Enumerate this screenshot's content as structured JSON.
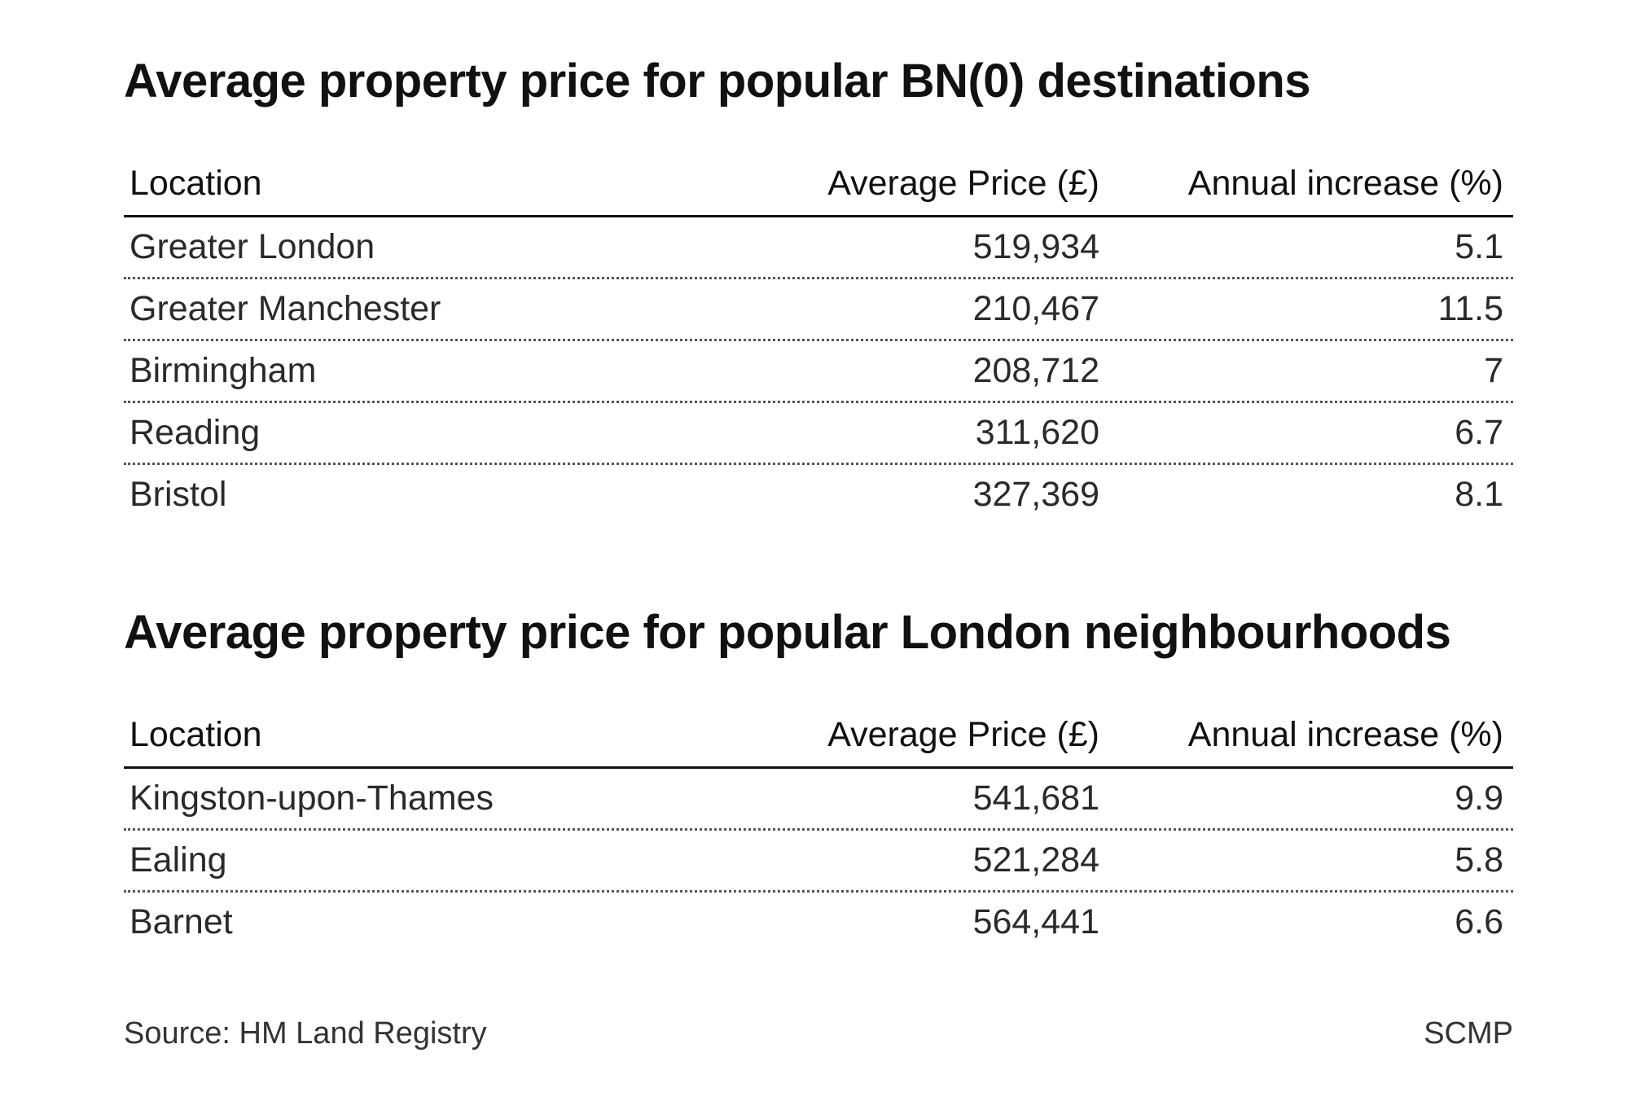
{
  "tables": [
    {
      "title": "Average property price for popular BN(0) destinations",
      "headers": {
        "location": "Location",
        "price": "Average Price (£)",
        "increase": "Annual increase (%)"
      },
      "rows": [
        {
          "location": "Greater London",
          "price": "519,934",
          "increase": "5.1"
        },
        {
          "location": "Greater Manchester",
          "price": "210,467",
          "increase": "11.5"
        },
        {
          "location": "Birmingham",
          "price": "208,712",
          "increase": "7"
        },
        {
          "location": "Reading",
          "price": "311,620",
          "increase": "6.7"
        },
        {
          "location": "Bristol",
          "price": "327,369",
          "increase": "8.1"
        }
      ]
    },
    {
      "title": "Average property price for popular London neighbourhoods",
      "headers": {
        "location": "Location",
        "price": "Average Price (£)",
        "increase": "Annual increase (%)"
      },
      "rows": [
        {
          "location": "Kingston-upon-Thames",
          "price": "541,681",
          "increase": "9.9"
        },
        {
          "location": "Ealing",
          "price": "521,284",
          "increase": "5.8"
        },
        {
          "location": "Barnet",
          "price": "564,441",
          "increase": "6.6"
        }
      ]
    }
  ],
  "footer": {
    "source": "Source: HM Land Registry",
    "brand": "SCMP"
  }
}
